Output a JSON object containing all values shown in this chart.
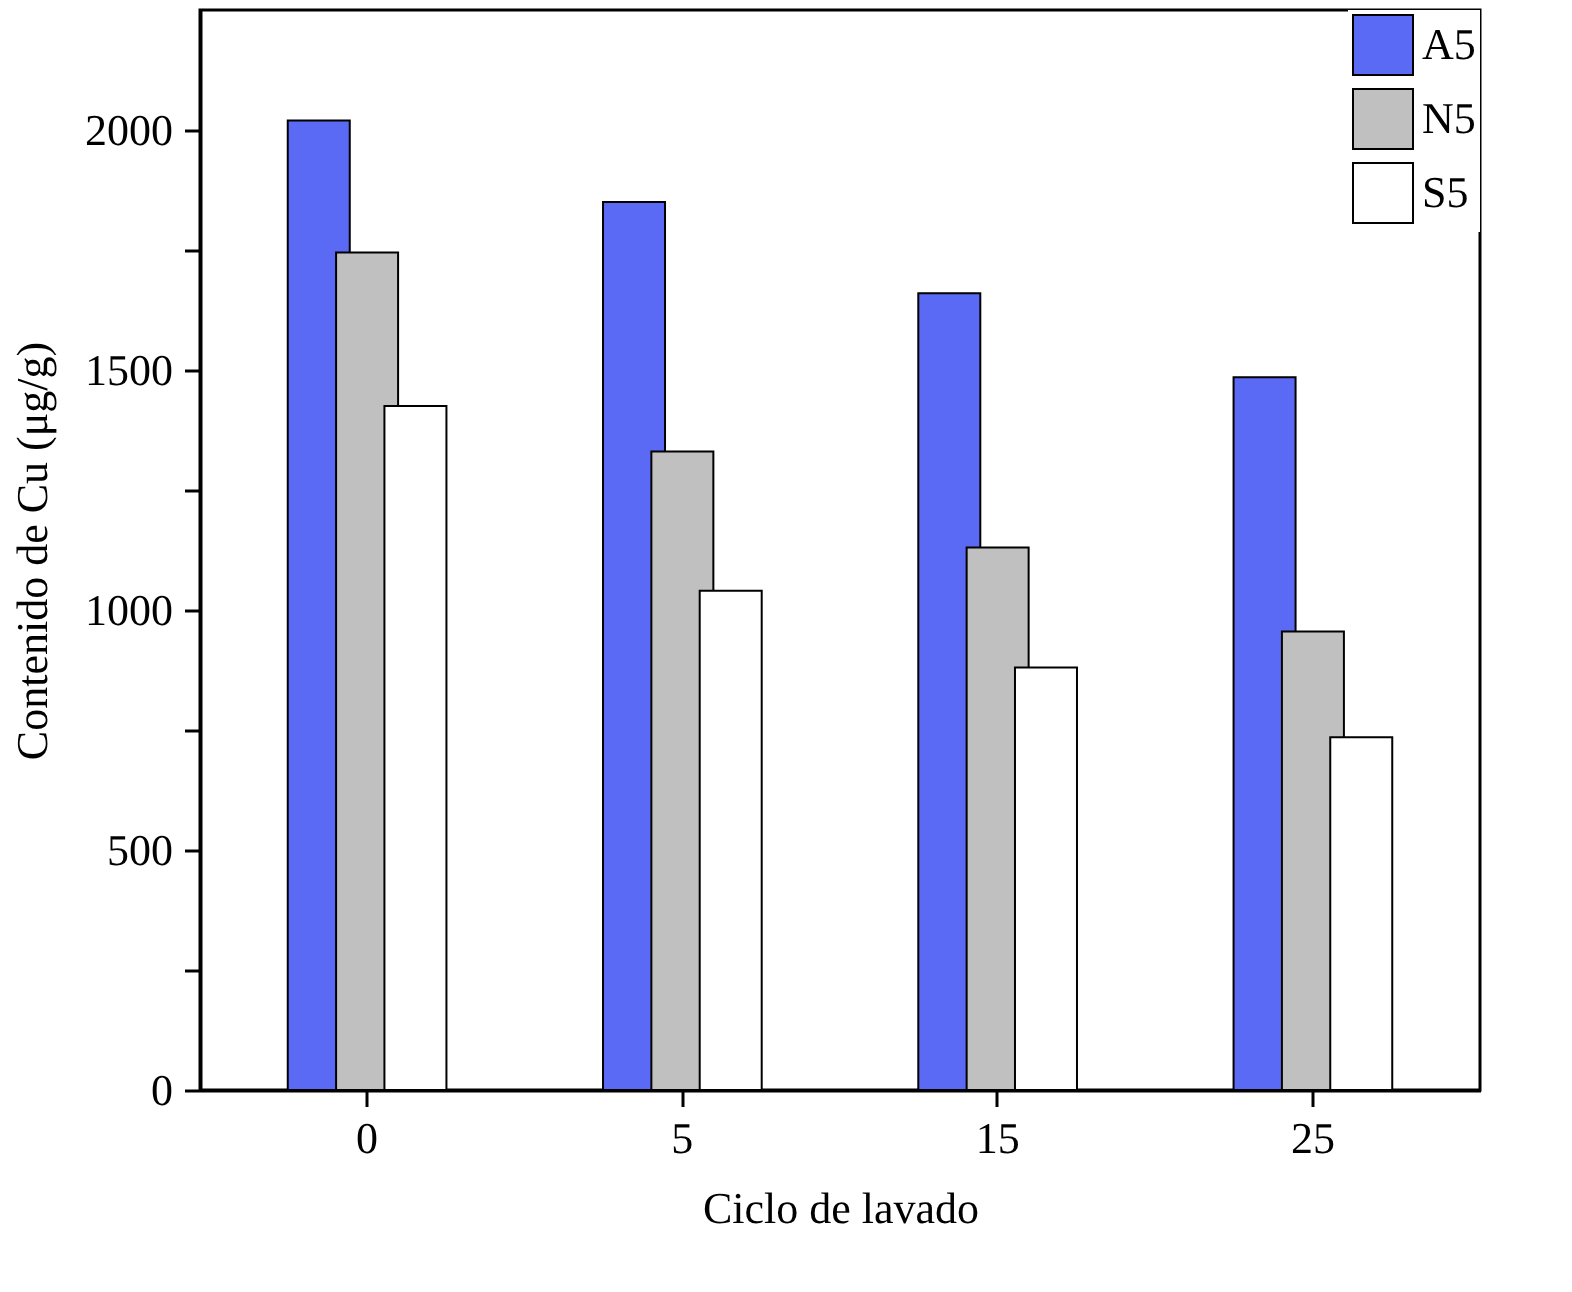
{
  "chart_data": {
    "type": "bar",
    "xlabel": "Ciclo de lavado",
    "ylabel": "Contenido de Cu (μg/g)",
    "categories": [
      "0",
      "5",
      "15",
      "25"
    ],
    "series": [
      {
        "name": "A5",
        "color": "#5b6af5",
        "values": [
          2020,
          1850,
          1660,
          1485
        ]
      },
      {
        "name": "N5",
        "color": "#c0c0c0",
        "values": [
          1745,
          1330,
          1130,
          955
        ]
      },
      {
        "name": "S5",
        "color": "#ffffff",
        "values": [
          1425,
          1040,
          880,
          735
        ]
      }
    ],
    "ylim": [
      0,
      2250
    ],
    "yticks": [
      0,
      {
        "value": 250,
        "label": null
      },
      500,
      {
        "value": 750,
        "label": null
      },
      1000,
      {
        "value": 1250,
        "label": null
      },
      1500,
      {
        "value": 1750,
        "label": null
      },
      2000
    ],
    "legend": "top right",
    "grid": false
  }
}
